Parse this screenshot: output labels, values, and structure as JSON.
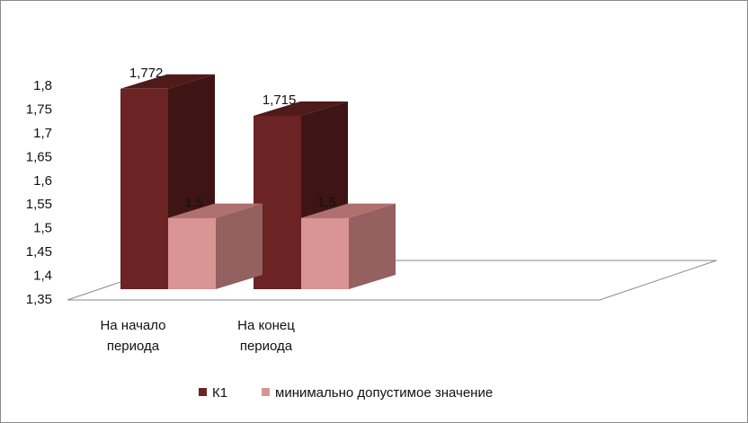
{
  "chart_data": {
    "type": "bar",
    "categories": [
      [
        "На начало",
        "периода"
      ],
      [
        "На конец",
        "периода"
      ]
    ],
    "series": [
      {
        "name": "К1",
        "values": [
          1.772,
          1.715
        ],
        "data_labels": [
          "1,772",
          "1,715"
        ]
      },
      {
        "name": "минимально допустимое значение",
        "values": [
          1.5,
          1.5
        ],
        "data_labels": [
          "1,5",
          "1,5"
        ]
      }
    ],
    "ylim": [
      1.35,
      1.8
    ],
    "y_ticks": [
      1.35,
      1.4,
      1.45,
      1.5,
      1.55,
      1.6,
      1.65,
      1.7,
      1.75,
      1.8
    ],
    "y_tick_labels": [
      "1,35",
      "1,4",
      "1,45",
      "1,5",
      "1,55",
      "1,6",
      "1,65",
      "1,7",
      "1,75",
      "1,8"
    ],
    "legend_position": "bottom",
    "grid": false,
    "style": "3d-clustered-column",
    "colors": {
      "series": [
        {
          "front": "#6b2323",
          "top": "#4f1a1a",
          "side": "#3f1414"
        },
        {
          "front": "#d99594",
          "top": "#b07070",
          "side": "#946060"
        }
      ],
      "floor_stroke": "#8a8a8a",
      "frame_border": "#8a8a8a"
    }
  }
}
